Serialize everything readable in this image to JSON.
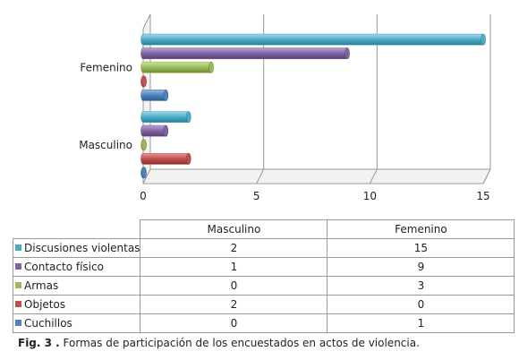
{
  "chart_data": {
    "type": "bar",
    "orientation": "horizontal",
    "categories": [
      "Masculino",
      "Femenino"
    ],
    "xlim": [
      0,
      15
    ],
    "x_ticks": [
      "0",
      "5",
      "10",
      "15"
    ],
    "grid": "vertical",
    "series": [
      {
        "name": "Discusiones violentas",
        "color": "#4bacc6",
        "values": [
          2,
          15
        ]
      },
      {
        "name": "Contacto físico",
        "color": "#8064a2",
        "values": [
          1,
          9
        ]
      },
      {
        "name": "Armas",
        "color": "#9bbb59",
        "values": [
          0,
          3
        ]
      },
      {
        "name": "Objetos",
        "color": "#c0504d",
        "values": [
          2,
          0
        ]
      },
      {
        "name": "Cuchillos",
        "color": "#4f81bd",
        "values": [
          0,
          1
        ]
      }
    ]
  },
  "table": {
    "headers": [
      "Masculino",
      "Femenino"
    ],
    "rows": [
      {
        "label": "Discusiones violentas",
        "color": "#4bacc6",
        "values": [
          "2",
          "15"
        ]
      },
      {
        "label": "Contacto físico",
        "color": "#8064a2",
        "values": [
          "1",
          "9"
        ]
      },
      {
        "label": "Armas",
        "color": "#9bbb59",
        "values": [
          "0",
          "3"
        ]
      },
      {
        "label": "Objetos",
        "color": "#c0504d",
        "values": [
          "2",
          "0"
        ]
      },
      {
        "label": "Cuchillos",
        "color": "#4f81bd",
        "values": [
          "0",
          "1"
        ]
      }
    ]
  },
  "caption": {
    "label": "Fig. 3 .",
    "text": " Formas de participación de los encuestados en actos de violencia."
  }
}
